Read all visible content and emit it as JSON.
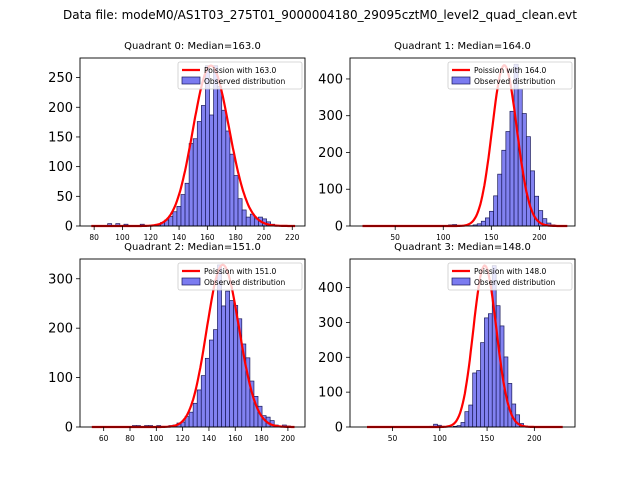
{
  "figure": {
    "suptitle": "Data file: modeM0/AS1T03_275T01_9000004180_29095cztM0_level2_quad_clean.evt"
  },
  "colors": {
    "bar_fill": "#7b7bf0",
    "bar_edge": "#1a1a5a",
    "poisson_line": "#ff0000"
  },
  "chart_data": [
    {
      "type": "bar",
      "title": "Quadrant 0: Median=163.0",
      "xlabel": "",
      "ylabel": "",
      "xlim": [
        70,
        229
      ],
      "ylim": [
        0,
        283
      ],
      "xticks": [
        80,
        100,
        120,
        140,
        160,
        180,
        200,
        220
      ],
      "yticks": [
        0,
        50,
        100,
        150,
        200,
        250
      ],
      "legend": {
        "position": "top-right",
        "entries": [
          "Poission with 163.0",
          "Observed distribution"
        ]
      },
      "poisson_mean": 163.0,
      "poisson_peak": 270,
      "bin_start": 78,
      "bin_width": 2.88,
      "counts": [
        0,
        0,
        0,
        0,
        4,
        0,
        4,
        0,
        3,
        0,
        0,
        0,
        3,
        0,
        0,
        1,
        2,
        6,
        10,
        16,
        24,
        33,
        53,
        72,
        139,
        147,
        176,
        203,
        270,
        187,
        270,
        235,
        195,
        160,
        121,
        85,
        46,
        27,
        15,
        20,
        12,
        15,
        12,
        7,
        3,
        1,
        1,
        1,
        0,
        0
      ]
    },
    {
      "type": "bar",
      "title": "Quadrant 1: Median=164.0",
      "xlabel": "",
      "ylabel": "",
      "xlim": [
        3,
        237
      ],
      "ylim": [
        0,
        457
      ],
      "xticks": [
        50,
        100,
        150,
        200
      ],
      "yticks": [
        0,
        100,
        200,
        300,
        400
      ],
      "legend": {
        "position": "top-right",
        "entries": [
          "Poission with 164.0",
          "Observed distribution"
        ]
      },
      "poisson_mean": 164.0,
      "poisson_peak": 437,
      "bin_start": 16,
      "bin_width": 4.26,
      "counts": [
        0,
        0,
        0,
        0,
        0,
        0,
        0,
        0,
        0,
        0,
        0,
        0,
        0,
        0,
        0,
        0,
        0,
        0,
        0,
        0,
        1,
        3,
        4,
        0,
        0,
        0,
        1,
        3,
        6,
        13,
        22,
        40,
        82,
        141,
        206,
        257,
        312,
        440,
        373,
        306,
        243,
        150,
        81,
        42,
        20,
        8,
        3,
        1,
        0,
        0
      ]
    },
    {
      "type": "bar",
      "title": "Quadrant 2: Median=151.0",
      "xlabel": "",
      "ylabel": "",
      "xlim": [
        42,
        213
      ],
      "ylim": [
        0,
        340
      ],
      "xticks": [
        60,
        80,
        100,
        120,
        140,
        160,
        180,
        200
      ],
      "yticks": [
        0,
        100,
        200,
        300
      ],
      "legend": {
        "position": "top-right",
        "entries": [
          "Poission with 151.0",
          "Observed distribution"
        ]
      },
      "poisson_mean": 151.0,
      "poisson_peak": 328,
      "bin_start": 51,
      "bin_width": 3.08,
      "counts": [
        0,
        0,
        0,
        0,
        0,
        0,
        0,
        0,
        0,
        0,
        3,
        3,
        0,
        3,
        3,
        0,
        3,
        0,
        0,
        3,
        4,
        8,
        10,
        21,
        30,
        48,
        75,
        104,
        139,
        176,
        197,
        328,
        245,
        275,
        256,
        246,
        219,
        168,
        140,
        93,
        62,
        42,
        23,
        20,
        13,
        4,
        0,
        4,
        2,
        0
      ]
    },
    {
      "type": "bar",
      "title": "Quadrant 3: Median=148.0",
      "xlabel": "",
      "ylabel": "",
      "xlim": [
        5,
        243
      ],
      "ylim": [
        0,
        482
      ],
      "xticks": [
        50,
        100,
        150,
        200
      ],
      "yticks": [
        0,
        100,
        200,
        300,
        400
      ],
      "legend": {
        "position": "top-right",
        "entries": [
          "Poission with 148.0",
          "Observed distribution"
        ]
      },
      "poisson_mean": 148.0,
      "poisson_peak": 463,
      "bin_start": 23,
      "bin_width": 4.14,
      "counts": [
        0,
        0,
        0,
        0,
        0,
        0,
        0,
        0,
        0,
        0,
        0,
        0,
        0,
        0,
        0,
        0,
        2,
        8,
        5,
        2,
        1,
        0,
        2,
        4,
        13,
        44,
        63,
        155,
        162,
        242,
        313,
        325,
        463,
        348,
        290,
        201,
        125,
        66,
        35,
        10,
        3,
        1,
        0,
        0,
        0,
        0,
        0,
        0,
        0,
        0
      ]
    }
  ]
}
